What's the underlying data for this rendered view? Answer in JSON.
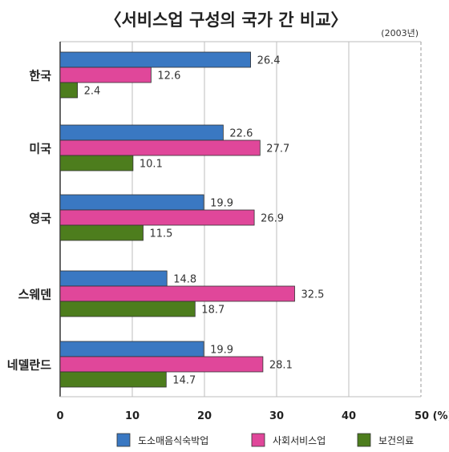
{
  "chart_data": {
    "type": "bar",
    "orientation": "horizontal",
    "title": "〈서비스업 구성의 국가 간 비교〉",
    "note": "(2003년)",
    "categories": [
      "한국",
      "미국",
      "영국",
      "스웨덴",
      "네델란드"
    ],
    "series": [
      {
        "name": "도소매음식숙박업",
        "color": "#3a78c2",
        "values": [
          26.4,
          22.6,
          19.9,
          14.8,
          19.9
        ]
      },
      {
        "name": "사회서비스업",
        "color": "#e0479a",
        "values": [
          12.6,
          27.7,
          26.9,
          32.5,
          28.1
        ]
      },
      {
        "name": "보건의료",
        "color": "#4d7d1d",
        "values": [
          2.4,
          10.1,
          11.5,
          18.7,
          14.7
        ]
      }
    ],
    "value_labels": [
      [
        "26.4",
        "22.6",
        "19.9",
        "14.8",
        "19.9"
      ],
      [
        "12.6",
        "27.7",
        "26.9",
        "32.5",
        "28.1"
      ],
      [
        "2.4",
        "10.1",
        "11.5",
        "18.7",
        "14.7"
      ]
    ],
    "x_ticks": [
      "0",
      "10",
      "20",
      "30",
      "40",
      "50 (%)"
    ],
    "x_tick_values": [
      0,
      10,
      20,
      30,
      40,
      50
    ],
    "xlim": [
      0,
      50
    ],
    "grid": true,
    "legend_position": "bottom"
  }
}
